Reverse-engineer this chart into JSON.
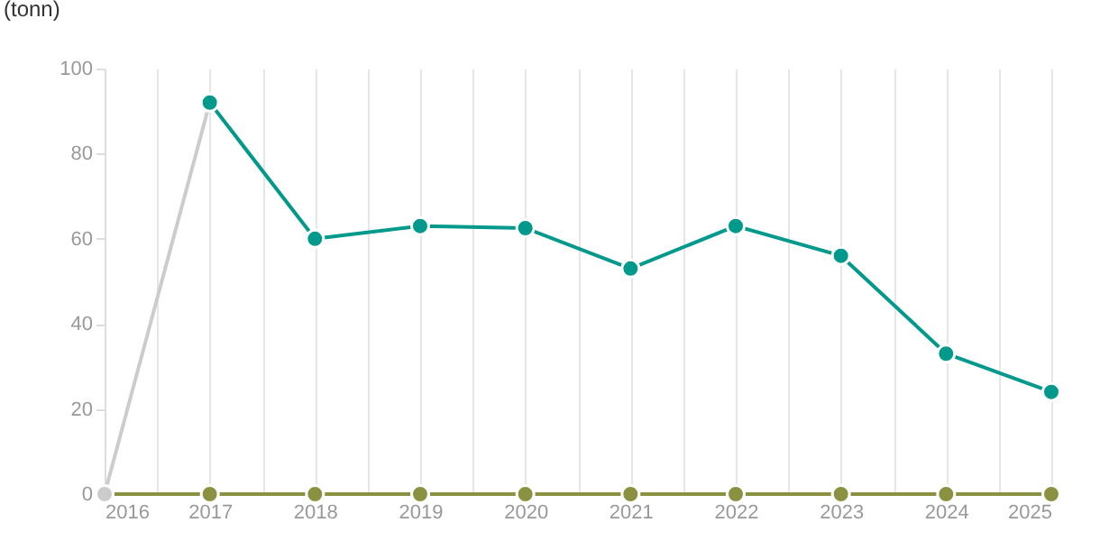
{
  "chart_data": {
    "type": "line",
    "ylabel": "(tonn)",
    "xlim": [
      2016,
      2025
    ],
    "xticks": [
      2016,
      {
        "value": 2016.5,
        "label": null
      },
      2017,
      {
        "value": 2017.5,
        "label": null
      },
      2018,
      {
        "value": 2018.5,
        "label": null
      },
      2019,
      {
        "value": 2019.5,
        "label": null
      },
      2020,
      {
        "value": 2020.5,
        "label": null
      },
      2021,
      {
        "value": 2021.5,
        "label": null
      },
      2022,
      {
        "value": 2022.5,
        "label": null
      },
      2023,
      {
        "value": 2023.5,
        "label": null
      },
      2024,
      {
        "value": 2024.5,
        "label": null
      },
      2025
    ],
    "ylim": [
      0,
      100
    ],
    "yticks": [
      0,
      20,
      40,
      60,
      80,
      100
    ],
    "grid": "x",
    "marker": "circle",
    "line_style": "solid",
    "series": [
      {
        "color": "#8a9140",
        "x": [
          2016,
          2017,
          2018,
          2019,
          2020,
          2021,
          2022,
          2023,
          2024,
          2025
        ],
        "values": [
          0,
          0,
          0,
          0,
          0,
          0,
          0,
          0,
          0,
          0
        ]
      },
      {
        "color": "#cccccc",
        "x": [
          2016,
          2017
        ],
        "values": [
          0,
          92
        ]
      },
      {
        "color": "#00998c",
        "x": [
          2017,
          2018,
          2019,
          2020,
          2021,
          2022,
          2023,
          2024,
          2025
        ],
        "values": [
          92,
          60,
          63,
          62.5,
          53,
          63,
          56,
          33,
          24
        ]
      }
    ]
  }
}
